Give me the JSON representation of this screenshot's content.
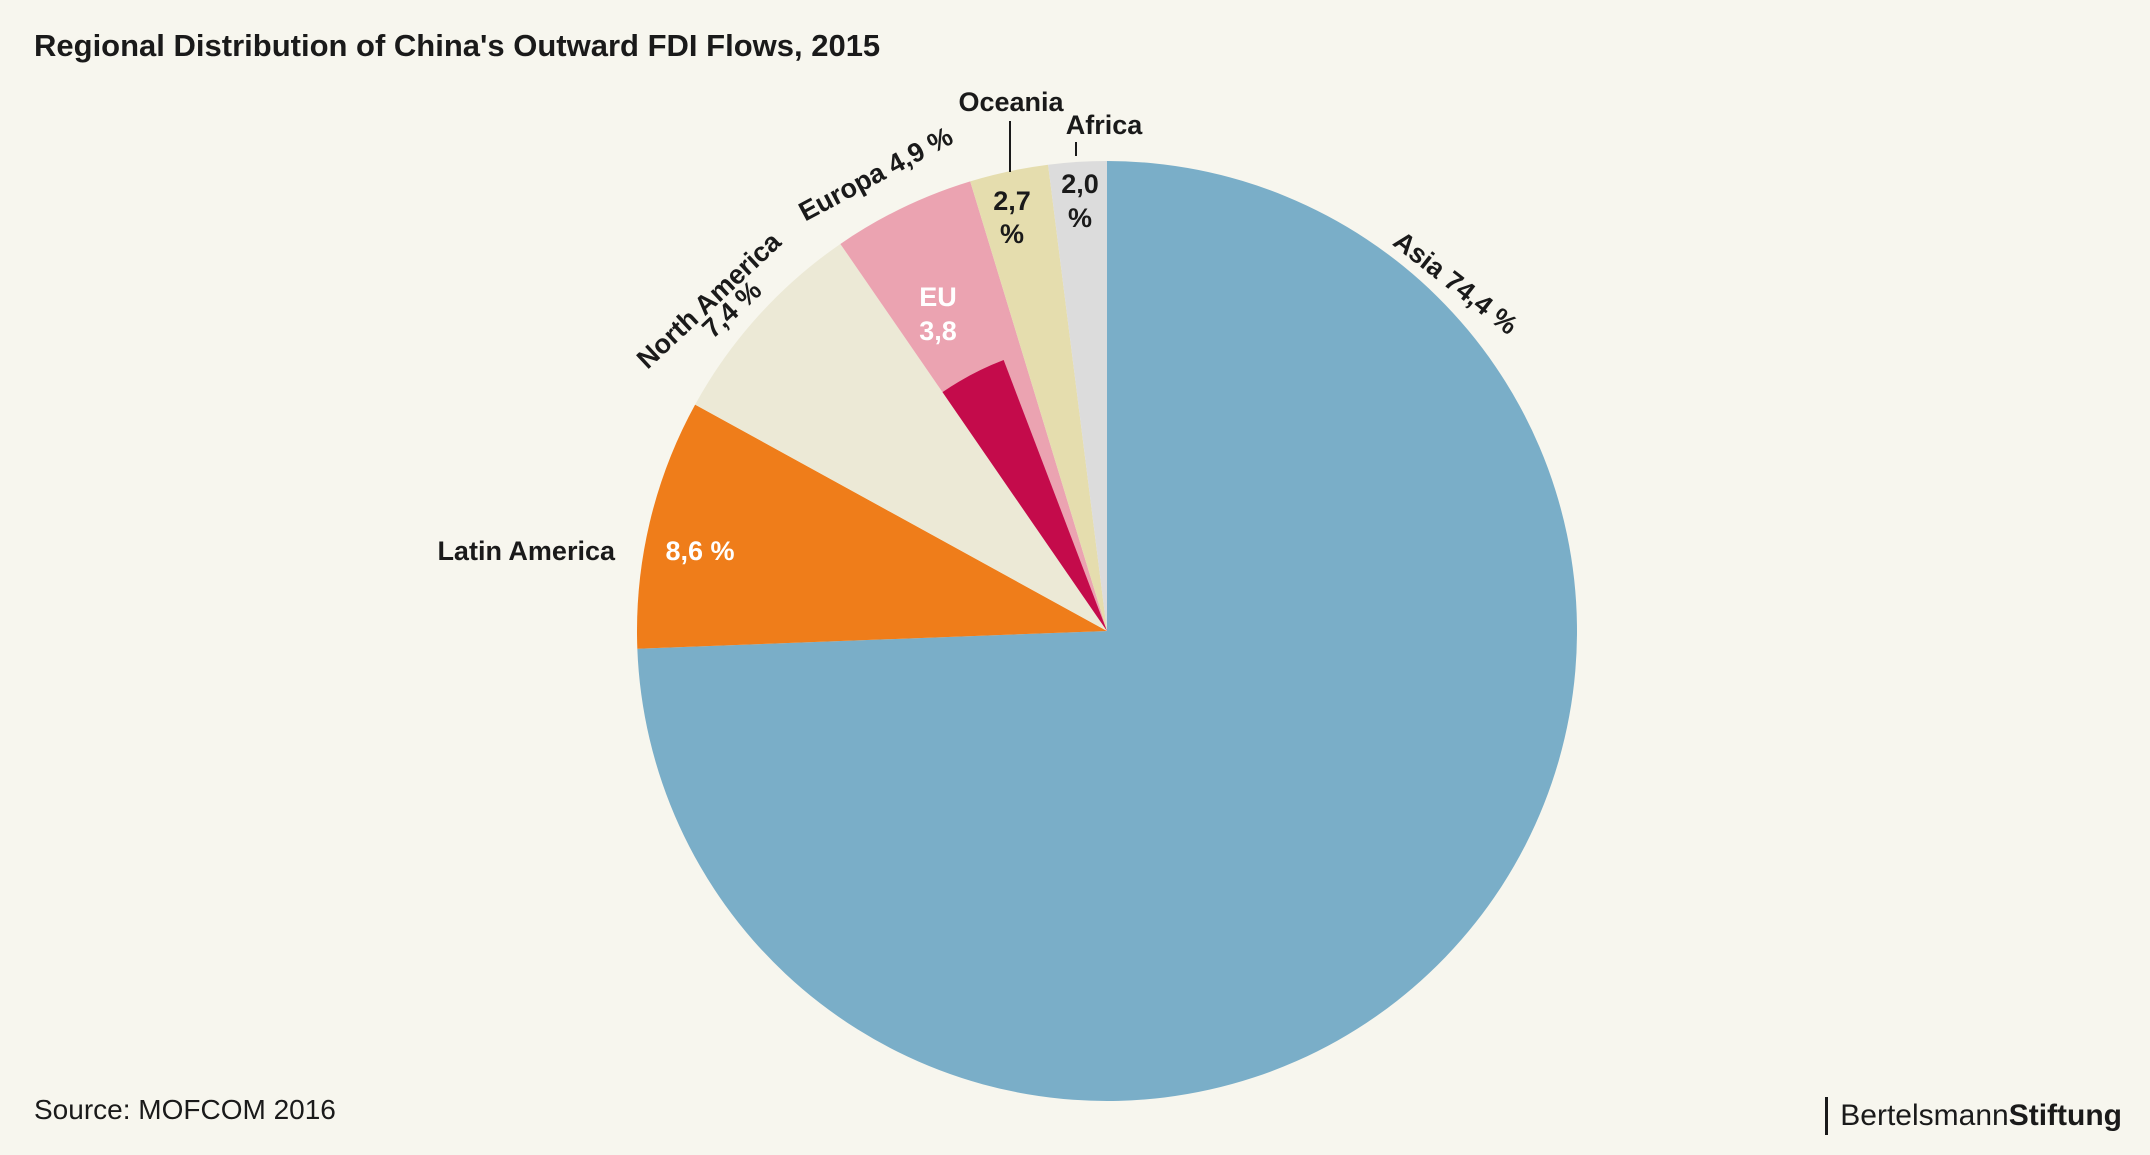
{
  "title": "Regional Distribution of China's Outward FDI Flows, 2015",
  "source": "Source: MOFCOM 2016",
  "brand": {
    "part1": "Bertelsmann",
    "part2": "Stiftung"
  },
  "chart_data": {
    "type": "pie",
    "title": "Regional Distribution of China's Outward FDI Flows, 2015",
    "unit": "%",
    "start": "12 o'clock",
    "direction": "clockwise",
    "slices": [
      {
        "name": "Asia",
        "value": 74.4,
        "color": "#7aaec8",
        "label": "Asia 74,4 %"
      },
      {
        "name": "Latin America",
        "value": 8.6,
        "color": "#ef7d1a",
        "label": "Latin America",
        "value_label": "8,6 %"
      },
      {
        "name": "North America",
        "value": 7.4,
        "color": "#ece9d6",
        "label": "North America",
        "value_label": "7,4 %"
      },
      {
        "name": "Europa",
        "value": 4.9,
        "color": "#eba3b1",
        "label": "Europa 4,9 %"
      },
      {
        "name": "Oceania",
        "value": 2.7,
        "color": "#e5ddae",
        "label": "Oceania",
        "value_label_lines": [
          "2,7",
          "%"
        ]
      },
      {
        "name": "Africa",
        "value": 2.0,
        "color": "#dcdcdc",
        "label": "Africa",
        "value_label_lines": [
          "2,0",
          "%"
        ]
      }
    ],
    "sub_slice": {
      "name": "EU",
      "value": 3.8,
      "parent": "Europa",
      "color": "#c40b4b",
      "label_lines": [
        "EU",
        "3,8"
      ]
    }
  }
}
